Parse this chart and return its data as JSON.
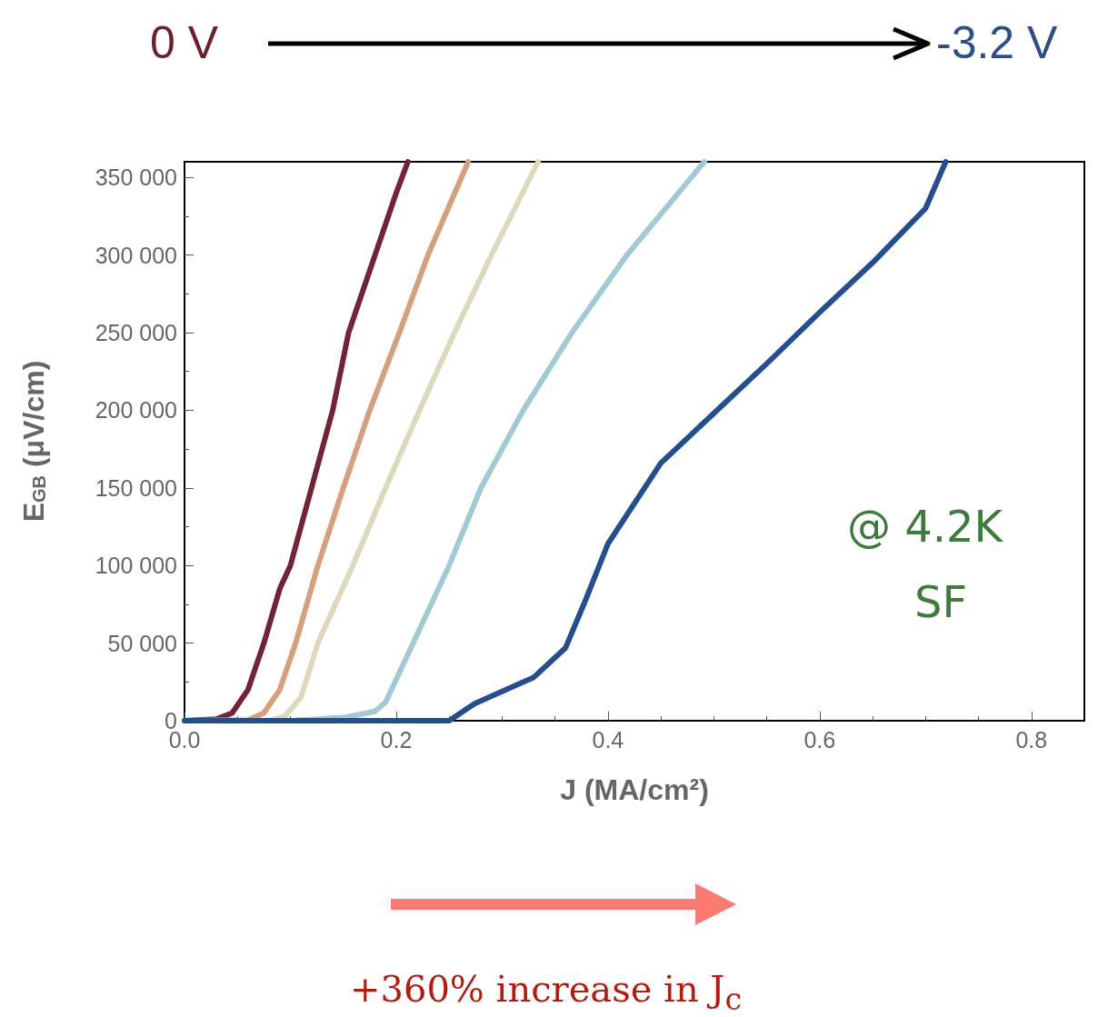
{
  "chart_data": {
    "type": "line",
    "xlabel": "J (MA/cm²)",
    "ylabel": "E$_{GB}$ (μV/cm)",
    "annotations": [
      "0 V",
      "-3.2 V",
      "@ 4.2K",
      "SF",
      "+360% increase in J$_{c}$"
    ],
    "xlim": [
      0,
      0.85
    ],
    "xticks": [
      {
        "value": 0,
        "label": "0.0"
      },
      0.2,
      0.4,
      0.6,
      0.8
    ],
    "ylim": [
      0,
      360000
    ],
    "yticks": [
      0,
      {
        "value": 50000,
        "label": "50 000"
      },
      {
        "value": 100000,
        "label": "100 000"
      },
      {
        "value": 150000,
        "label": "150 000"
      },
      {
        "value": 200000,
        "label": "200 000"
      },
      {
        "value": 250000,
        "label": "250 000"
      },
      {
        "value": 300000,
        "label": "300 000"
      },
      {
        "value": 350000,
        "label": "350 000"
      }
    ],
    "grid": false,
    "marker": "none",
    "line_style": "solid",
    "series": [
      {
        "color": "#722338",
        "x": [
          0,
          0.03,
          0.045,
          0.06,
          0.075,
          0.09,
          0.1,
          0.12,
          0.14,
          0.155,
          0.18,
          0.2,
          0.211
        ],
        "values": [
          0,
          1000,
          5000,
          20000,
          50000,
          85000,
          100000,
          150000,
          200000,
          250000,
          300000,
          340000,
          360000
        ]
      },
      {
        "color": "#d4a080",
        "x": [
          0,
          0.06,
          0.075,
          0.09,
          0.105,
          0.126,
          0.15,
          0.175,
          0.203,
          0.23,
          0.268
        ],
        "values": [
          0,
          500,
          5000,
          20000,
          50000,
          100000,
          150000,
          200000,
          250000,
          300000,
          360000
        ]
      },
      {
        "color": "#dcdabb",
        "x": [
          0,
          0.08,
          0.095,
          0.11,
          0.126,
          0.159,
          0.19,
          0.222,
          0.255,
          0.29,
          0.334
        ],
        "values": [
          0,
          0,
          3000,
          15000,
          50000,
          100000,
          150000,
          200000,
          250000,
          300000,
          360000
        ]
      },
      {
        "color": "#a2cad4",
        "x": [
          0,
          0.1,
          0.15,
          0.18,
          0.19,
          0.216,
          0.25,
          0.28,
          0.32,
          0.366,
          0.418,
          0.491
        ],
        "values": [
          0,
          0,
          2000,
          6000,
          12000,
          50000,
          100000,
          150000,
          200000,
          250000,
          300000,
          360000
        ]
      },
      {
        "color": "#244f8c",
        "x": [
          0,
          0.25,
          0.274,
          0.33,
          0.36,
          0.379,
          0.4,
          0.45,
          0.5,
          0.55,
          0.6,
          0.65,
          0.7,
          0.719
        ],
        "values": [
          0,
          0,
          11000,
          28000,
          47000,
          78000,
          114000,
          166000,
          198000,
          230000,
          263000,
          295000,
          330000,
          360000
        ]
      }
    ]
  }
}
